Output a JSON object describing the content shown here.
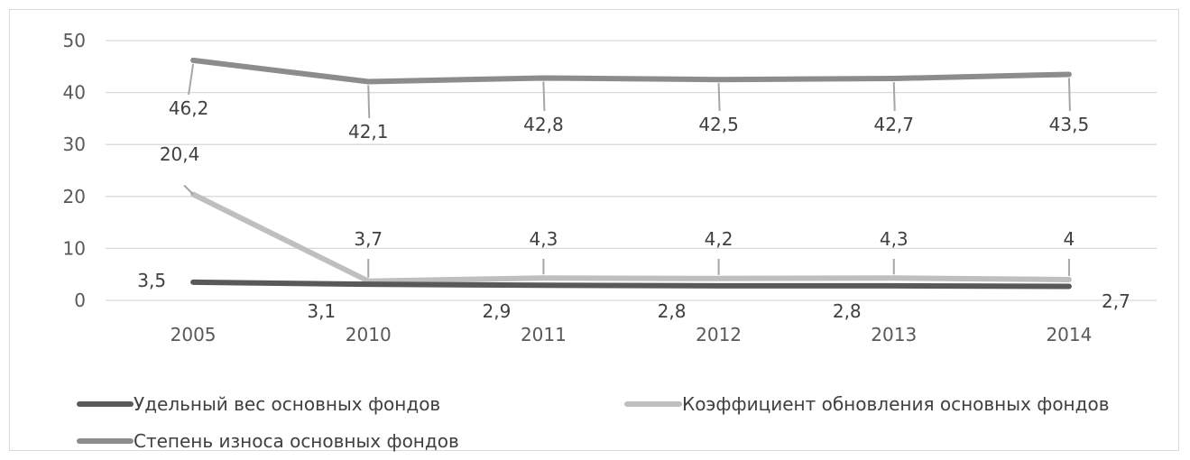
{
  "chart_data": {
    "type": "line",
    "categories": [
      "2005",
      "2010",
      "2011",
      "2012",
      "2013",
      "2014"
    ],
    "ylim": [
      0,
      50
    ],
    "yticks": [
      "0",
      "10",
      "20",
      "30",
      "40",
      "50"
    ],
    "grid": true,
    "legend_position": "bottom",
    "series": [
      {
        "name": "Удельный вес основных фондов",
        "color": "#595959",
        "values": [
          3.5,
          3.1,
          2.9,
          2.8,
          2.8,
          2.7
        ],
        "labels": [
          "3,5",
          "3,1",
          "2,9",
          "2,8",
          "2,8",
          "2,7"
        ]
      },
      {
        "name": "Коэффициент обновления основных фондов",
        "color": "#bfbfbf",
        "values": [
          20.4,
          3.7,
          4.3,
          4.2,
          4.3,
          4.0
        ],
        "labels": [
          "20,4",
          "3,7",
          "4,3",
          "4,2",
          "4,3",
          "4"
        ]
      },
      {
        "name": "Степень износа основных фондов",
        "color": "#8c8c8c",
        "values": [
          46.2,
          42.1,
          42.8,
          42.5,
          42.7,
          43.5
        ],
        "labels": [
          "46,2",
          "42,1",
          "42,8",
          "42,5",
          "42,7",
          "43,5"
        ]
      }
    ]
  }
}
